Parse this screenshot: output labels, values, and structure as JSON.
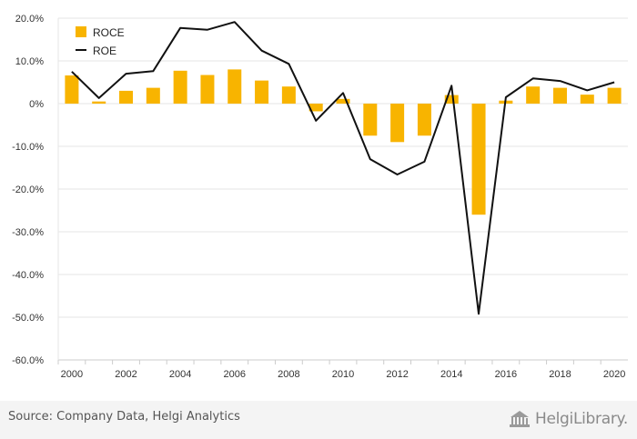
{
  "chart_data": {
    "type": "bar",
    "categories": [
      "2000",
      "2001",
      "2002",
      "2003",
      "2004",
      "2005",
      "2006",
      "2007",
      "2008",
      "2009",
      "2010",
      "2011",
      "2012",
      "2013",
      "2014",
      "2015",
      "2016",
      "2017",
      "2018",
      "2019",
      "2020"
    ],
    "series": [
      {
        "name": "ROCE",
        "type": "bar",
        "color": "#f8b400",
        "values": [
          6.6,
          0.5,
          3.0,
          3.7,
          7.7,
          6.7,
          8.0,
          5.4,
          4.0,
          -1.8,
          1.1,
          -7.5,
          -9.0,
          -7.5,
          2.0,
          -26.0,
          0.7,
          4.0,
          3.7,
          2.1,
          3.7
        ]
      },
      {
        "name": "ROE",
        "type": "line",
        "color": "#111111",
        "values": [
          7.5,
          1.3,
          7.0,
          7.6,
          17.7,
          17.3,
          19.1,
          12.4,
          9.3,
          -4.0,
          2.5,
          -13.0,
          -16.6,
          -13.6,
          4.2,
          -49.2,
          1.5,
          5.9,
          5.3,
          3.1,
          5.0
        ]
      }
    ],
    "y_ticks": [
      "20.0%",
      "10.0%",
      "0%",
      "-10.0%",
      "-20.0%",
      "-30.0%",
      "-40.0%",
      "-50.0%",
      "-60.0%"
    ],
    "x_tick_labels": [
      "2000",
      "2002",
      "2004",
      "2006",
      "2008",
      "2010",
      "2012",
      "2014",
      "2016",
      "2018",
      "2020"
    ],
    "ylim": [
      -60,
      20
    ],
    "grid": true,
    "legend_position": "top-left"
  },
  "footer": {
    "source": "Source: Company Data, Helgi Analytics",
    "logo_text": "HelgiLibrary."
  }
}
